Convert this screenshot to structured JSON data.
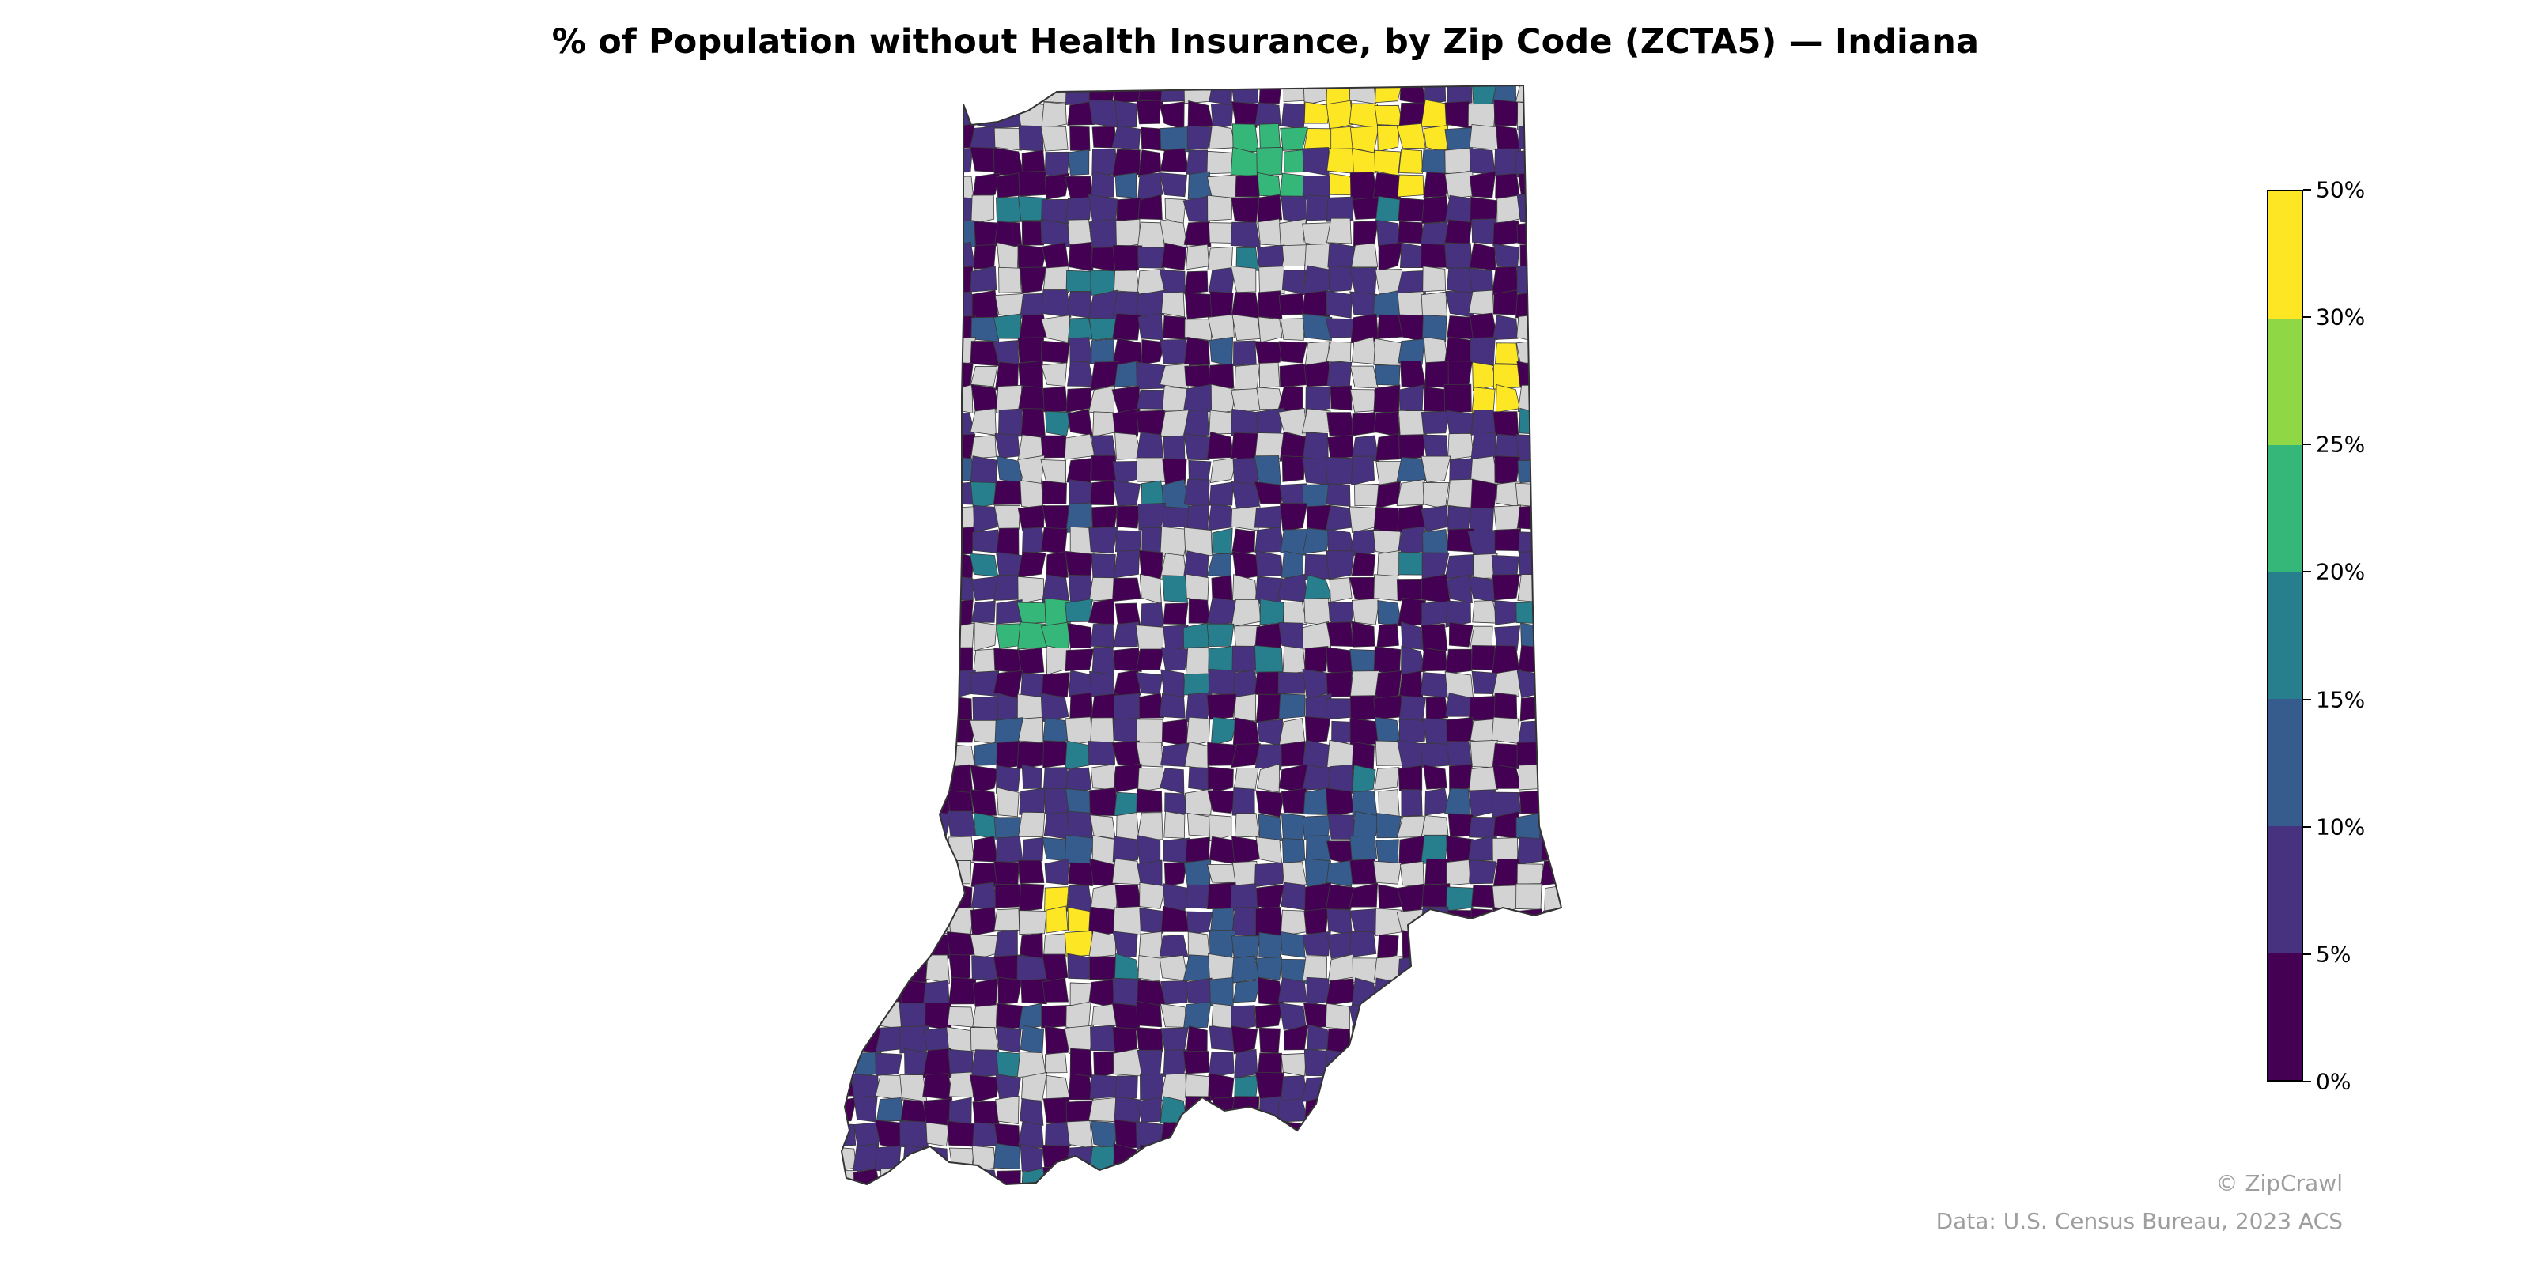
{
  "title": "% of Population without Health Insurance, by Zip Code (ZCTA5) — Indiana",
  "colorbar": {
    "ticks": [
      "0%",
      "5%",
      "10%",
      "15%",
      "20%",
      "25%",
      "30%",
      "50%"
    ],
    "bins": [
      {
        "range": [
          0,
          5
        ],
        "color": "#440154"
      },
      {
        "range": [
          5,
          10
        ],
        "color": "#46327e"
      },
      {
        "range": [
          10,
          15
        ],
        "color": "#365c8d"
      },
      {
        "range": [
          15,
          20
        ],
        "color": "#277f8e"
      },
      {
        "range": [
          20,
          25
        ],
        "color": "#35b779"
      },
      {
        "range": [
          25,
          30
        ],
        "color": "#8fd744"
      },
      {
        "range": [
          30,
          50
        ],
        "color": "#fde725"
      }
    ],
    "no_data_color": "#d3d3d3"
  },
  "credits": {
    "brand": "© ZipCrawl",
    "source": "Data: U.S. Census Bureau, 2023 ACS"
  }
}
